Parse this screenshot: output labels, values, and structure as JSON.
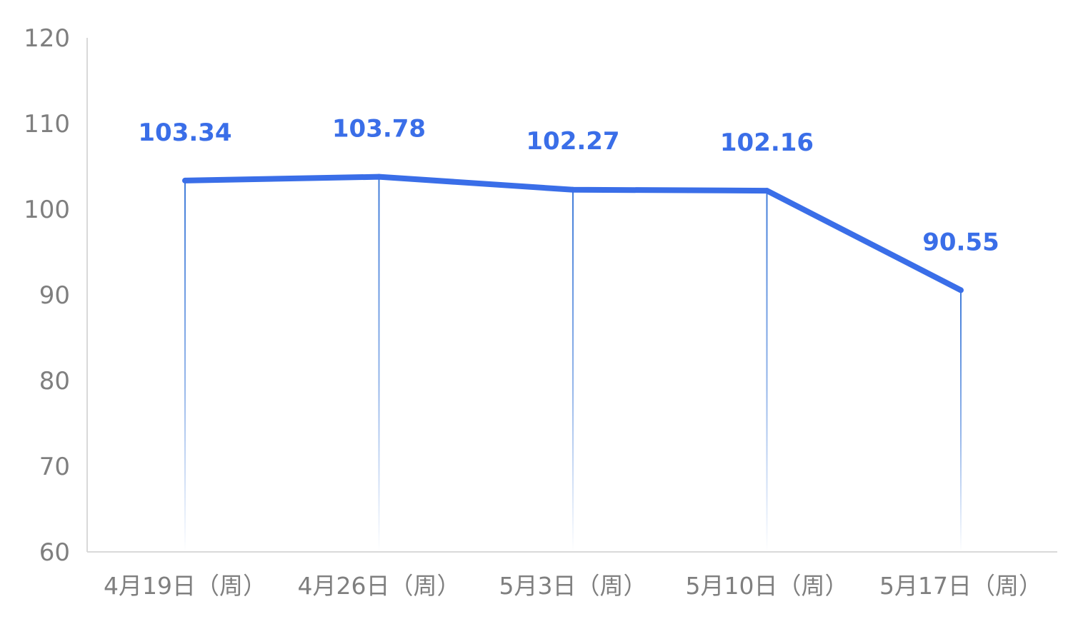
{
  "chart_data": {
    "type": "line",
    "title": "",
    "xlabel": "",
    "ylabel": "",
    "categories": [
      "4月19日（周）",
      "4月26日（周）",
      "5月3日（周）",
      "5月10日（周）",
      "5月17日（周）"
    ],
    "values": [
      103.34,
      103.78,
      102.27,
      102.16,
      90.55
    ],
    "data_labels": [
      "103.34",
      "103.78",
      "102.27",
      "102.16",
      "90.55"
    ],
    "ylim": [
      60,
      120
    ],
    "yticks": [
      60,
      70,
      80,
      90,
      100,
      110,
      120
    ],
    "ytick_labels": [
      "60",
      "70",
      "80",
      "90",
      "100",
      "110",
      "120"
    ],
    "grid": false,
    "drop_lines": true,
    "legend": "none",
    "colors": {
      "line": "#3a6ee8",
      "drop_line": "#3f7bd9",
      "axis": "#d9d9d9",
      "tick_text": "#7f7f7f",
      "label_text": "#3a6ee8"
    }
  }
}
